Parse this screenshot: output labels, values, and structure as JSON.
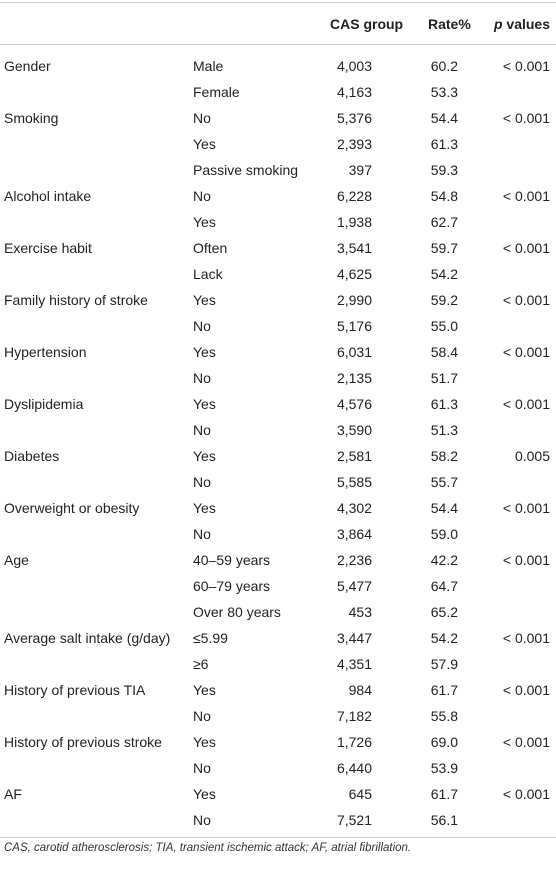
{
  "header": {
    "cas_group": "CAS group",
    "rate": "Rate%",
    "p_symbol": "p",
    "p_word": "values"
  },
  "groups": [
    {
      "variable": "Gender",
      "p_value": "< 0.001",
      "levels": [
        {
          "label": "Male",
          "cas": "4,003",
          "rate": "60.2"
        },
        {
          "label": "Female",
          "cas": "4,163",
          "rate": "53.3"
        }
      ]
    },
    {
      "variable": "Smoking",
      "p_value": "< 0.001",
      "levels": [
        {
          "label": "No",
          "cas": "5,376",
          "rate": "54.4"
        },
        {
          "label": "Yes",
          "cas": "2,393",
          "rate": "61.3"
        },
        {
          "label": "Passive smoking",
          "cas": "397",
          "rate": "59.3"
        }
      ]
    },
    {
      "variable": "Alcohol intake",
      "p_value": "< 0.001",
      "levels": [
        {
          "label": "No",
          "cas": "6,228",
          "rate": "54.8"
        },
        {
          "label": "Yes",
          "cas": "1,938",
          "rate": "62.7"
        }
      ]
    },
    {
      "variable": "Exercise habit",
      "p_value": "< 0.001",
      "levels": [
        {
          "label": "Often",
          "cas": "3,541",
          "rate": "59.7"
        },
        {
          "label": "Lack",
          "cas": "4,625",
          "rate": "54.2"
        }
      ]
    },
    {
      "variable": "Family history of stroke",
      "p_value": "< 0.001",
      "levels": [
        {
          "label": "Yes",
          "cas": "2,990",
          "rate": "59.2"
        },
        {
          "label": "No",
          "cas": "5,176",
          "rate": "55.0"
        }
      ]
    },
    {
      "variable": "Hypertension",
      "p_value": "< 0.001",
      "levels": [
        {
          "label": "Yes",
          "cas": "6,031",
          "rate": "58.4"
        },
        {
          "label": "No",
          "cas": "2,135",
          "rate": "51.7"
        }
      ]
    },
    {
      "variable": "Dyslipidemia",
      "p_value": "< 0.001",
      "levels": [
        {
          "label": "Yes",
          "cas": "4,576",
          "rate": "61.3"
        },
        {
          "label": "No",
          "cas": "3,590",
          "rate": "51.3"
        }
      ]
    },
    {
      "variable": "Diabetes",
      "p_value": "0.005",
      "levels": [
        {
          "label": "Yes",
          "cas": "2,581",
          "rate": "58.2"
        },
        {
          "label": "No",
          "cas": "5,585",
          "rate": "55.7"
        }
      ]
    },
    {
      "variable": "Overweight or obesity",
      "p_value": "< 0.001",
      "levels": [
        {
          "label": "Yes",
          "cas": "4,302",
          "rate": "54.4"
        },
        {
          "label": "No",
          "cas": "3,864",
          "rate": "59.0"
        }
      ]
    },
    {
      "variable": "Age",
      "p_value": "< 0.001",
      "levels": [
        {
          "label": "40–59 years",
          "cas": "2,236",
          "rate": "42.2"
        },
        {
          "label": "60–79 years",
          "cas": "5,477",
          "rate": "64.7"
        },
        {
          "label": "Over 80 years",
          "cas": "453",
          "rate": "65.2"
        }
      ]
    },
    {
      "variable": "Average salt intake (g/day)",
      "p_value": "< 0.001",
      "levels": [
        {
          "label": "≤5.99",
          "cas": "3,447",
          "rate": "54.2"
        },
        {
          "label": "≥6",
          "cas": "4,351",
          "rate": "57.9"
        }
      ]
    },
    {
      "variable": "History of previous TIA",
      "p_value": "< 0.001",
      "levels": [
        {
          "label": "Yes",
          "cas": "984",
          "rate": "61.7"
        },
        {
          "label": "No",
          "cas": "7,182",
          "rate": "55.8"
        }
      ]
    },
    {
      "variable": "History of previous stroke",
      "p_value": "< 0.001",
      "levels": [
        {
          "label": "Yes",
          "cas": "1,726",
          "rate": "69.0"
        },
        {
          "label": "No",
          "cas": "6,440",
          "rate": "53.9"
        }
      ]
    },
    {
      "variable": "AF",
      "p_value": "< 0.001",
      "levels": [
        {
          "label": "Yes",
          "cas": "645",
          "rate": "61.7"
        },
        {
          "label": "No",
          "cas": "7,521",
          "rate": "56.1"
        }
      ]
    }
  ],
  "footnote": "CAS, carotid atherosclerosis; TIA, transient ischemic attack; AF, atrial fibrillation."
}
